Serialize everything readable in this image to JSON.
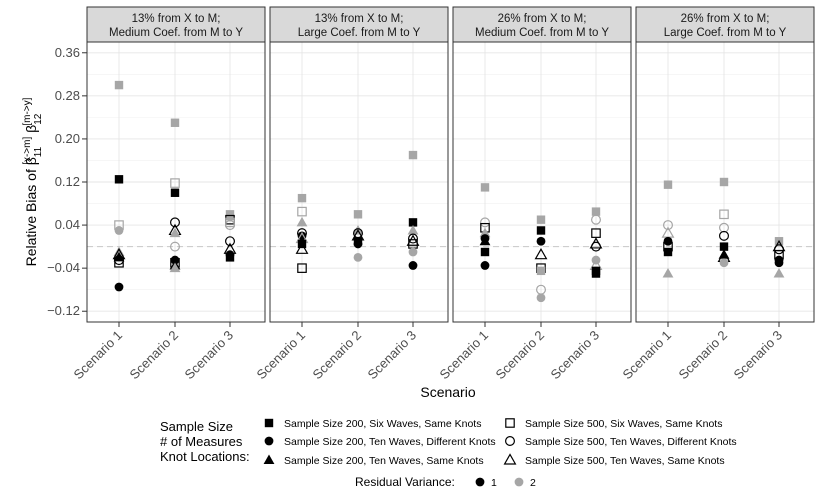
{
  "chart_data": {
    "type": "scatter",
    "ylabel_prefix": "Relative Bias of β",
    "ylabel_sub": "11",
    "ylabel_sup": "[x->m]",
    "ylabel_mid": " β",
    "ylabel_sub2": "12",
    "ylabel_sup2": "[m->y]",
    "xlabel": "Scenario",
    "categories": [
      "Scenario 1",
      "Scenario 2",
      "Scenario 3"
    ],
    "ylim": [
      -0.14,
      0.38
    ],
    "yticks": [
      -0.12,
      -0.04,
      0.04,
      0.12,
      0.2,
      0.28,
      0.36
    ],
    "ytick_labels": [
      "−0.12",
      "−0.04",
      "0.04",
      "0.12",
      "0.20",
      "0.28",
      "0.36"
    ],
    "reference_line": 0.0,
    "colors": {
      "1": "#000000",
      "2": "#a6a6a6"
    },
    "panels": [
      {
        "title_line1": "13% from X to M;",
        "title_line2": "Medium Coef. from M to Y",
        "points": [
          {
            "x": 1,
            "y": 0.3,
            "shape": "square",
            "size": "200",
            "var": 2
          },
          {
            "x": 1,
            "y": 0.125,
            "shape": "square",
            "size": "200",
            "var": 1
          },
          {
            "x": 1,
            "y": 0.04,
            "shape": "square",
            "size": "500",
            "var": 2
          },
          {
            "x": 1,
            "y": 0.03,
            "shape": "circle",
            "size": "200",
            "var": 2
          },
          {
            "x": 1,
            "y": -0.01,
            "shape": "triangle",
            "size": "200",
            "var": 2
          },
          {
            "x": 1,
            "y": -0.015,
            "shape": "triangle",
            "size": "500",
            "var": 1
          },
          {
            "x": 1,
            "y": -0.02,
            "shape": "triangle",
            "size": "200",
            "var": 1
          },
          {
            "x": 1,
            "y": -0.025,
            "shape": "circle",
            "size": "500",
            "var": 1
          },
          {
            "x": 1,
            "y": -0.03,
            "shape": "square",
            "size": "500",
            "var": 1
          },
          {
            "x": 1,
            "y": -0.075,
            "shape": "circle",
            "size": "200",
            "var": 1
          },
          {
            "x": 2,
            "y": 0.23,
            "shape": "square",
            "size": "200",
            "var": 2
          },
          {
            "x": 2,
            "y": 0.118,
            "shape": "square",
            "size": "500",
            "var": 2
          },
          {
            "x": 2,
            "y": 0.1,
            "shape": "square",
            "size": "200",
            "var": 1
          },
          {
            "x": 2,
            "y": 0.045,
            "shape": "circle",
            "size": "500",
            "var": 1
          },
          {
            "x": 2,
            "y": 0.03,
            "shape": "triangle",
            "size": "500",
            "var": 1
          },
          {
            "x": 2,
            "y": 0.025,
            "shape": "triangle",
            "size": "200",
            "var": 2
          },
          {
            "x": 2,
            "y": 0.0,
            "shape": "circle",
            "size": "500",
            "var": 2
          },
          {
            "x": 2,
            "y": -0.025,
            "shape": "circle",
            "size": "200",
            "var": 1
          },
          {
            "x": 2,
            "y": -0.03,
            "shape": "square",
            "size": "500",
            "var": 1
          },
          {
            "x": 2,
            "y": -0.035,
            "shape": "triangle",
            "size": "200",
            "var": 1
          },
          {
            "x": 2,
            "y": -0.04,
            "shape": "triangle",
            "size": "200",
            "var": 2
          },
          {
            "x": 3,
            "y": 0.06,
            "shape": "square",
            "size": "200",
            "var": 2
          },
          {
            "x": 3,
            "y": 0.055,
            "shape": "circle",
            "size": "200",
            "var": 2
          },
          {
            "x": 3,
            "y": 0.05,
            "shape": "square",
            "size": "500",
            "var": 1
          },
          {
            "x": 3,
            "y": 0.045,
            "shape": "square",
            "size": "500",
            "var": 2
          },
          {
            "x": 3,
            "y": 0.04,
            "shape": "circle",
            "size": "500",
            "var": 2
          },
          {
            "x": 3,
            "y": 0.01,
            "shape": "circle",
            "size": "500",
            "var": 1
          },
          {
            "x": 3,
            "y": -0.005,
            "shape": "triangle",
            "size": "500",
            "var": 1
          },
          {
            "x": 3,
            "y": -0.015,
            "shape": "circle",
            "size": "200",
            "var": 1
          },
          {
            "x": 3,
            "y": -0.02,
            "shape": "square",
            "size": "200",
            "var": 1
          }
        ]
      },
      {
        "title_line1": "13% from X to M;",
        "title_line2": "Large Coef. from M to Y",
        "points": [
          {
            "x": 1,
            "y": 0.09,
            "shape": "square",
            "size": "200",
            "var": 2
          },
          {
            "x": 1,
            "y": 0.065,
            "shape": "square",
            "size": "500",
            "var": 2
          },
          {
            "x": 1,
            "y": 0.045,
            "shape": "triangle",
            "size": "200",
            "var": 2
          },
          {
            "x": 1,
            "y": 0.025,
            "shape": "circle",
            "size": "500",
            "var": 1
          },
          {
            "x": 1,
            "y": 0.02,
            "shape": "circle",
            "size": "200",
            "var": 1
          },
          {
            "x": 1,
            "y": 0.015,
            "shape": "triangle",
            "size": "500",
            "var": 2
          },
          {
            "x": 1,
            "y": 0.005,
            "shape": "square",
            "size": "200",
            "var": 1
          },
          {
            "x": 1,
            "y": -0.005,
            "shape": "triangle",
            "size": "500",
            "var": 1
          },
          {
            "x": 1,
            "y": -0.04,
            "shape": "square",
            "size": "500",
            "var": 1
          },
          {
            "x": 2,
            "y": 0.06,
            "shape": "square",
            "size": "200",
            "var": 2
          },
          {
            "x": 2,
            "y": 0.03,
            "shape": "triangle",
            "size": "200",
            "var": 2
          },
          {
            "x": 2,
            "y": 0.025,
            "shape": "circle",
            "size": "500",
            "var": 1
          },
          {
            "x": 2,
            "y": 0.02,
            "shape": "triangle",
            "size": "500",
            "var": 1
          },
          {
            "x": 2,
            "y": 0.01,
            "shape": "square",
            "size": "200",
            "var": 1
          },
          {
            "x": 2,
            "y": 0.005,
            "shape": "circle",
            "size": "200",
            "var": 1
          },
          {
            "x": 2,
            "y": -0.02,
            "shape": "circle",
            "size": "200",
            "var": 2
          },
          {
            "x": 3,
            "y": 0.17,
            "shape": "square",
            "size": "200",
            "var": 2
          },
          {
            "x": 3,
            "y": 0.045,
            "shape": "square",
            "size": "200",
            "var": 1
          },
          {
            "x": 3,
            "y": 0.03,
            "shape": "triangle",
            "size": "200",
            "var": 2
          },
          {
            "x": 3,
            "y": 0.015,
            "shape": "circle",
            "size": "500",
            "var": 1
          },
          {
            "x": 3,
            "y": 0.01,
            "shape": "triangle",
            "size": "500",
            "var": 1
          },
          {
            "x": 3,
            "y": 0.005,
            "shape": "square",
            "size": "500",
            "var": 1
          },
          {
            "x": 3,
            "y": -0.01,
            "shape": "circle",
            "size": "200",
            "var": 2
          },
          {
            "x": 3,
            "y": -0.035,
            "shape": "circle",
            "size": "200",
            "var": 1
          }
        ]
      },
      {
        "title_line1": "26% from X to M;",
        "title_line2": "Medium Coef. from M to Y",
        "points": [
          {
            "x": 1,
            "y": 0.11,
            "shape": "square",
            "size": "200",
            "var": 2
          },
          {
            "x": 1,
            "y": 0.045,
            "shape": "circle",
            "size": "500",
            "var": 2
          },
          {
            "x": 1,
            "y": 0.035,
            "shape": "square",
            "size": "500",
            "var": 1
          },
          {
            "x": 1,
            "y": 0.025,
            "shape": "triangle",
            "size": "200",
            "var": 2
          },
          {
            "x": 1,
            "y": 0.015,
            "shape": "circle",
            "size": "200",
            "var": 1
          },
          {
            "x": 1,
            "y": 0.01,
            "shape": "triangle",
            "size": "200",
            "var": 1
          },
          {
            "x": 1,
            "y": -0.01,
            "shape": "square",
            "size": "200",
            "var": 1
          },
          {
            "x": 1,
            "y": -0.035,
            "shape": "circle",
            "size": "200",
            "var": 1
          },
          {
            "x": 2,
            "y": 0.05,
            "shape": "square",
            "size": "200",
            "var": 2
          },
          {
            "x": 2,
            "y": 0.03,
            "shape": "square",
            "size": "200",
            "var": 1
          },
          {
            "x": 2,
            "y": 0.01,
            "shape": "circle",
            "size": "200",
            "var": 1
          },
          {
            "x": 2,
            "y": -0.015,
            "shape": "triangle",
            "size": "500",
            "var": 1
          },
          {
            "x": 2,
            "y": -0.04,
            "shape": "square",
            "size": "500",
            "var": 1
          },
          {
            "x": 2,
            "y": -0.045,
            "shape": "square",
            "size": "200",
            "var": 2
          },
          {
            "x": 2,
            "y": -0.08,
            "shape": "circle",
            "size": "500",
            "var": 2
          },
          {
            "x": 2,
            "y": -0.095,
            "shape": "circle",
            "size": "200",
            "var": 2
          },
          {
            "x": 3,
            "y": 0.065,
            "shape": "square",
            "size": "200",
            "var": 2
          },
          {
            "x": 3,
            "y": 0.05,
            "shape": "circle",
            "size": "500",
            "var": 2
          },
          {
            "x": 3,
            "y": 0.025,
            "shape": "square",
            "size": "500",
            "var": 1
          },
          {
            "x": 3,
            "y": 0.005,
            "shape": "triangle",
            "size": "500",
            "var": 1
          },
          {
            "x": 3,
            "y": 0.0,
            "shape": "circle",
            "size": "500",
            "var": 1
          },
          {
            "x": 3,
            "y": -0.025,
            "shape": "circle",
            "size": "200",
            "var": 2
          },
          {
            "x": 3,
            "y": -0.035,
            "shape": "triangle",
            "size": "500",
            "var": 2
          },
          {
            "x": 3,
            "y": -0.045,
            "shape": "square",
            "size": "200",
            "var": 1
          },
          {
            "x": 3,
            "y": -0.05,
            "shape": "square",
            "size": "200",
            "var": 1
          }
        ]
      },
      {
        "title_line1": "26% from X to M;",
        "title_line2": "Large Coef. from M to Y",
        "points": [
          {
            "x": 1,
            "y": 0.115,
            "shape": "square",
            "size": "200",
            "var": 2
          },
          {
            "x": 1,
            "y": 0.04,
            "shape": "circle",
            "size": "500",
            "var": 2
          },
          {
            "x": 1,
            "y": 0.025,
            "shape": "triangle",
            "size": "500",
            "var": 2
          },
          {
            "x": 1,
            "y": 0.01,
            "shape": "circle",
            "size": "200",
            "var": 1
          },
          {
            "x": 1,
            "y": 0.0,
            "shape": "square",
            "size": "500",
            "var": 1
          },
          {
            "x": 1,
            "y": -0.01,
            "shape": "square",
            "size": "200",
            "var": 1
          },
          {
            "x": 1,
            "y": -0.05,
            "shape": "triangle",
            "size": "200",
            "var": 2
          },
          {
            "x": 2,
            "y": 0.12,
            "shape": "square",
            "size": "200",
            "var": 2
          },
          {
            "x": 2,
            "y": 0.06,
            "shape": "square",
            "size": "500",
            "var": 2
          },
          {
            "x": 2,
            "y": 0.035,
            "shape": "circle",
            "size": "500",
            "var": 2
          },
          {
            "x": 2,
            "y": 0.02,
            "shape": "circle",
            "size": "500",
            "var": 1
          },
          {
            "x": 2,
            "y": 0.0,
            "shape": "square",
            "size": "200",
            "var": 1
          },
          {
            "x": 2,
            "y": -0.015,
            "shape": "triangle",
            "size": "200",
            "var": 1
          },
          {
            "x": 2,
            "y": -0.02,
            "shape": "triangle",
            "size": "500",
            "var": 1
          },
          {
            "x": 2,
            "y": -0.03,
            "shape": "circle",
            "size": "200",
            "var": 2
          },
          {
            "x": 3,
            "y": 0.01,
            "shape": "square",
            "size": "200",
            "var": 2
          },
          {
            "x": 3,
            "y": 0.0,
            "shape": "triangle",
            "size": "500",
            "var": 1
          },
          {
            "x": 3,
            "y": -0.005,
            "shape": "circle",
            "size": "500",
            "var": 1
          },
          {
            "x": 3,
            "y": -0.015,
            "shape": "square",
            "size": "500",
            "var": 1
          },
          {
            "x": 3,
            "y": -0.025,
            "shape": "circle",
            "size": "200",
            "var": 1
          },
          {
            "x": 3,
            "y": -0.03,
            "shape": "circle",
            "size": "200",
            "var": 1
          },
          {
            "x": 3,
            "y": -0.05,
            "shape": "triangle",
            "size": "200",
            "var": 2
          }
        ]
      }
    ],
    "legend": {
      "title_line1": "Sample Size",
      "title_line2": "# of Measures",
      "title_line3": "Knot Locations:",
      "entries": [
        {
          "shape": "square",
          "size": "200",
          "label": "Sample Size 200, Six Waves, Same Knots"
        },
        {
          "shape": "circle",
          "size": "200",
          "label": "Sample Size 200, Ten Waves, Different Knots"
        },
        {
          "shape": "triangle",
          "size": "200",
          "label": "Sample Size 200, Ten Waves, Same Knots"
        },
        {
          "shape": "square",
          "size": "500",
          "label": "Sample Size 500, Six Waves, Same Knots"
        },
        {
          "shape": "circle",
          "size": "500",
          "label": "Sample Size 500, Ten Waves, Different Knots"
        },
        {
          "shape": "triangle",
          "size": "500",
          "label": "Sample Size 500, Ten Waves, Same Knots"
        }
      ],
      "residual_title": "Residual Variance:",
      "residual_entries": [
        {
          "var": 1,
          "label": "1"
        },
        {
          "var": 2,
          "label": "2"
        }
      ]
    }
  }
}
